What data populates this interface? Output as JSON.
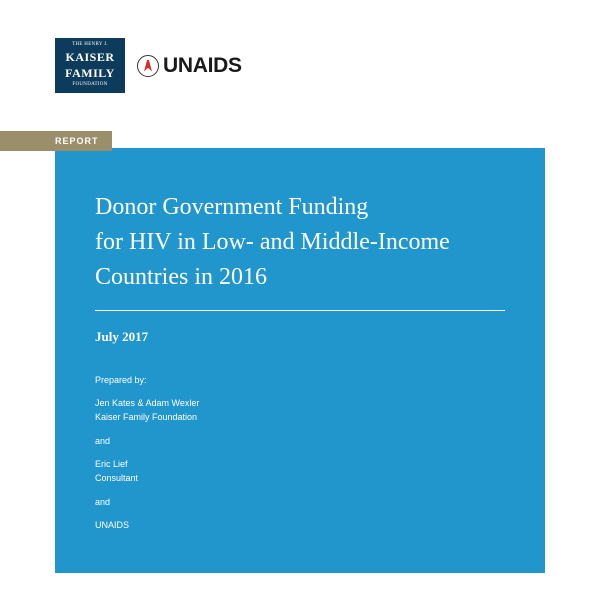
{
  "logos": {
    "kaiser": {
      "top": "THE HENRY J.",
      "main": "KAISER FAMILY",
      "bottom": "FOUNDATION"
    },
    "unaids": {
      "text": "UNAIDS"
    }
  },
  "badge": {
    "label": "REPORT"
  },
  "panel": {
    "title_line1": "Donor Government Funding",
    "title_line2": "for HIV in Low- and Middle-Income",
    "title_line3": "Countries in 2016",
    "date": "July 2017",
    "prepared_by_label": "Prepared by:",
    "authors": [
      {
        "name": "Jen Kates & Adam Wexler",
        "org": "Kaiser Family Foundation"
      },
      {
        "name": "Eric Lief",
        "org": "Consultant"
      },
      {
        "name": "UNAIDS",
        "org": ""
      }
    ],
    "and_label": "and"
  },
  "colors": {
    "kaiser_bg": "#0d3b5c",
    "badge_bg": "#9b8e6b",
    "panel_bg": "#2196cc",
    "text_white": "#ffffff",
    "unaids_text": "#1a1a1a",
    "ribbon": "#d32f2f"
  }
}
